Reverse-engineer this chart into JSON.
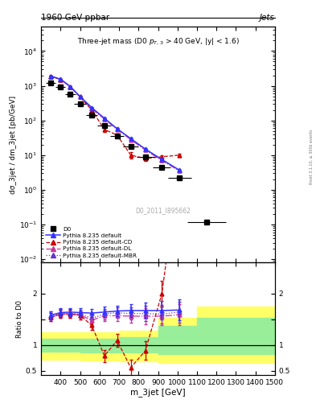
{
  "title_top": "1960 GeV ppbar",
  "title_right": "Jets",
  "plot_title": "Three-jet mass (D0 p_{T,3} > 40 GeV, |y| < 1.6)",
  "ylabel_main": "dσ_3jet / dm_3jet [pb/GeV]",
  "ylabel_ratio": "Ratio to D0",
  "xlabel": "m_3jet [GeV]",
  "watermark": "D0_2011_I895662",
  "xlim": [
    300,
    1500
  ],
  "ylim_main": [
    0.008,
    50000
  ],
  "ylim_ratio": [
    0.42,
    2.6
  ],
  "d0_x": [
    350,
    400,
    450,
    500,
    560,
    625,
    690,
    760,
    835,
    920,
    1010,
    1150
  ],
  "d0_y": [
    1200,
    950,
    580,
    300,
    145,
    70,
    35,
    18,
    9,
    4.5,
    2.2,
    0.12
  ],
  "d0_xerr": [
    25,
    25,
    25,
    30,
    30,
    35,
    35,
    40,
    45,
    45,
    60,
    100
  ],
  "d0_yerr": [
    120,
    95,
    58,
    30,
    14,
    7,
    3.5,
    1.8,
    0.9,
    0.5,
    0.25,
    0.015
  ],
  "pythia_default_x": [
    350,
    400,
    450,
    500,
    560,
    625,
    690,
    760,
    835,
    920,
    1010
  ],
  "pythia_default_y": [
    1900,
    1550,
    950,
    490,
    235,
    115,
    58,
    30,
    15,
    7.5,
    3.7
  ],
  "pythia_default_yerr": [
    80,
    65,
    40,
    20,
    10,
    5,
    2.5,
    1.3,
    0.7,
    0.35,
    0.18
  ],
  "pythia_cd_x": [
    350,
    400,
    450,
    500,
    560,
    625,
    690,
    760,
    835,
    920,
    1010
  ],
  "pythia_cd_y": [
    1850,
    1520,
    930,
    475,
    200,
    55,
    38,
    10,
    8,
    9,
    10
  ],
  "pythia_cd_yerr": [
    80,
    65,
    40,
    20,
    10,
    8,
    4,
    2,
    1.2,
    1.0,
    1.2
  ],
  "pythia_dl_x": [
    350,
    400,
    450,
    500,
    560,
    625,
    690,
    760,
    835,
    920,
    1010
  ],
  "pythia_dl_y": [
    1850,
    1520,
    935,
    475,
    215,
    110,
    55,
    28,
    14,
    7,
    3.5
  ],
  "pythia_dl_yerr": [
    80,
    65,
    40,
    20,
    10,
    5,
    2.5,
    1.2,
    0.65,
    0.35,
    0.18
  ],
  "pythia_mbr_x": [
    350,
    400,
    450,
    500,
    560,
    625,
    690,
    760,
    835,
    920,
    1010
  ],
  "pythia_mbr_y": [
    1880,
    1535,
    940,
    480,
    220,
    112,
    57,
    29,
    14.5,
    7.2,
    3.6
  ],
  "pythia_mbr_yerr": [
    80,
    65,
    40,
    20,
    10,
    5,
    2.5,
    1.2,
    0.65,
    0.35,
    0.18
  ],
  "ratio_default_x": [
    350,
    400,
    450,
    500,
    560,
    625,
    690,
    760,
    835,
    920,
    1010
  ],
  "ratio_default_y": [
    1.58,
    1.63,
    1.64,
    1.63,
    1.62,
    1.64,
    1.66,
    1.67,
    1.67,
    1.67,
    1.68
  ],
  "ratio_default_yerr": [
    0.08,
    0.08,
    0.08,
    0.08,
    0.08,
    0.1,
    0.1,
    0.12,
    0.15,
    0.18,
    0.2
  ],
  "ratio_cd_x": [
    350,
    400,
    450,
    500,
    560,
    625,
    690,
    760,
    835,
    920,
    1010
  ],
  "ratio_cd_y": [
    1.54,
    1.6,
    1.6,
    1.58,
    1.38,
    0.79,
    1.09,
    0.56,
    0.89,
    2.0,
    4.55
  ],
  "ratio_cd_yerr": [
    0.08,
    0.08,
    0.08,
    0.08,
    0.08,
    0.12,
    0.12,
    0.15,
    0.18,
    0.25,
    0.6
  ],
  "ratio_dl_x": [
    350,
    400,
    450,
    500,
    560,
    625,
    690,
    760,
    835,
    920,
    1010
  ],
  "ratio_dl_y": [
    1.54,
    1.6,
    1.61,
    1.58,
    1.48,
    1.57,
    1.57,
    1.56,
    1.56,
    1.56,
    1.59
  ],
  "ratio_dl_yerr": [
    0.08,
    0.08,
    0.08,
    0.08,
    0.08,
    0.1,
    0.1,
    0.12,
    0.15,
    0.18,
    0.2
  ],
  "ratio_mbr_x": [
    350,
    400,
    450,
    500,
    560,
    625,
    690,
    760,
    835,
    920,
    1010
  ],
  "ratio_mbr_y": [
    1.57,
    1.62,
    1.62,
    1.6,
    1.52,
    1.6,
    1.63,
    1.61,
    1.61,
    1.6,
    1.64
  ],
  "ratio_mbr_yerr": [
    0.08,
    0.08,
    0.08,
    0.08,
    0.08,
    0.1,
    0.1,
    0.12,
    0.15,
    0.18,
    0.2
  ],
  "band_yellow_x": [
    300,
    500,
    700,
    900,
    1100,
    1500
  ],
  "band_yellow_lo": [
    0.72,
    0.7,
    0.68,
    0.65,
    0.65,
    0.65
  ],
  "band_yellow_hi": [
    1.25,
    1.25,
    1.28,
    1.52,
    1.75,
    1.75
  ],
  "band_green_x": [
    300,
    500,
    700,
    900,
    1100,
    1500
  ],
  "band_green_lo": [
    0.87,
    0.86,
    0.85,
    0.83,
    0.83,
    0.83
  ],
  "band_green_hi": [
    1.12,
    1.12,
    1.15,
    1.37,
    1.52,
    1.52
  ],
  "color_d0": "#000000",
  "color_default": "#3333ff",
  "color_cd": "#cc0000",
  "color_dl": "#cc3399",
  "color_mbr": "#6633cc",
  "color_yellow": "#ffff66",
  "color_green": "#99ee99",
  "right_label": "Rivet 3.1.10, ≥ 300k events"
}
